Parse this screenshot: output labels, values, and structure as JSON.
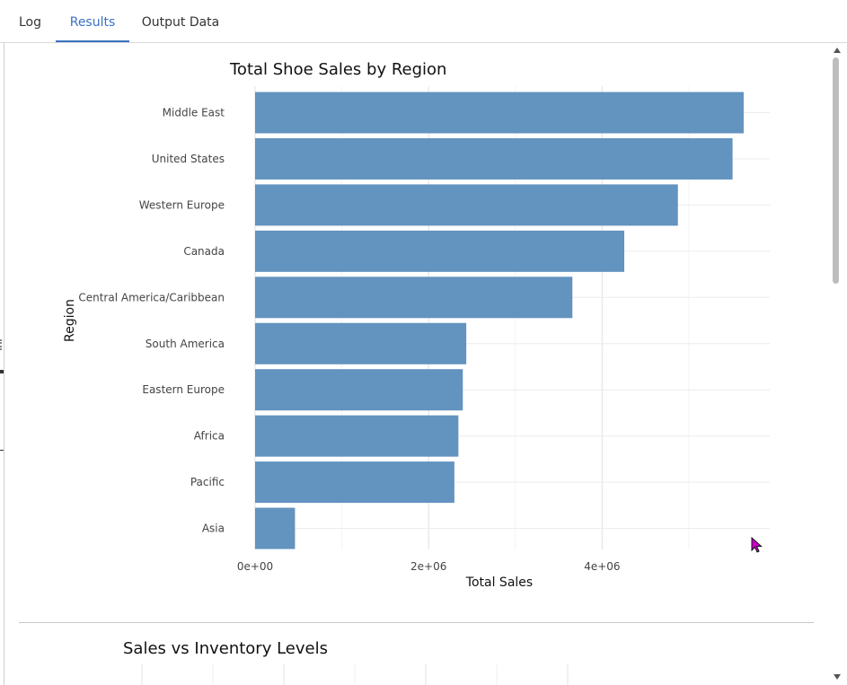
{
  "tabs": [
    {
      "label": "Log",
      "active": false
    },
    {
      "label": "Results",
      "active": true
    },
    {
      "label": "Output Data",
      "active": false
    }
  ],
  "colors": {
    "bar": "#6393bf",
    "accent": "#3a73c1",
    "grid": "#ebebeb"
  },
  "chart_data": {
    "type": "bar",
    "orientation": "horizontal",
    "title": "Total Shoe Sales by Region",
    "xlabel": "Total Sales",
    "ylabel": "Region",
    "categories": [
      "Middle East",
      "United States",
      "Western Europe",
      "Canada",
      "Central America/Caribbean",
      "South America",
      "Eastern Europe",
      "Africa",
      "Pacific",
      "Asia"
    ],
    "values": [
      5631000,
      5503000,
      4873000,
      4255000,
      3657000,
      2434000,
      2394000,
      2343000,
      2297000,
      460000
    ],
    "xticks": [
      "0e+00",
      "2e+06",
      "4e+06"
    ],
    "xtick_values": [
      0,
      2000000,
      4000000
    ],
    "xlim": [
      0,
      5900000
    ],
    "grid": true
  },
  "chart2": {
    "title": "Sales vs Inventory Levels"
  }
}
